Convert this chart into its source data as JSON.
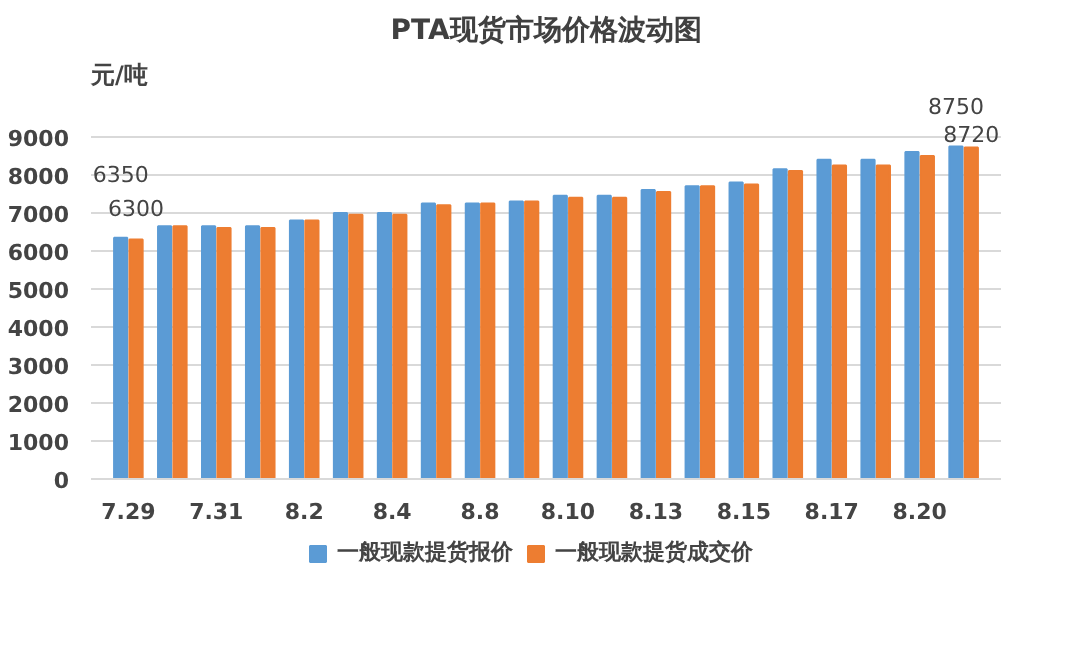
{
  "chart_data": {
    "type": "bar",
    "title": "PTA现货市场价格波动图",
    "ylabel": "元/吨",
    "categories": [
      "7.29",
      null,
      "7.31",
      null,
      "8.2",
      null,
      "8.4",
      null,
      "8.8",
      null,
      "8.10",
      null,
      "8.13",
      null,
      "8.15",
      null,
      "8.17",
      null,
      "8.20",
      null
    ],
    "series": [
      {
        "name": "一般现款提货报价",
        "color": "#5b9bd5",
        "values": [
          6350,
          6650,
          6650,
          6650,
          6800,
          7000,
          7000,
          7250,
          7250,
          7300,
          7450,
          7450,
          7600,
          7700,
          7800,
          8150,
          8400,
          8400,
          8600,
          8750
        ],
        "value_labels": [
          "6350",
          null,
          null,
          null,
          null,
          null,
          null,
          null,
          null,
          null,
          null,
          null,
          null,
          null,
          null,
          null,
          null,
          null,
          null,
          "8750"
        ]
      },
      {
        "name": "一般现款提货成交价",
        "color": "#ed7d31",
        "values": [
          6300,
          6650,
          6600,
          6600,
          6800,
          6950,
          6950,
          7200,
          7250,
          7300,
          7400,
          7400,
          7550,
          7700,
          7750,
          8100,
          8250,
          8250,
          8500,
          8720
        ],
        "value_labels": [
          "6300",
          null,
          null,
          null,
          null,
          null,
          null,
          null,
          null,
          null,
          null,
          null,
          null,
          null,
          null,
          null,
          null,
          null,
          null,
          "8720"
        ]
      }
    ],
    "ylim": [
      0,
      9000
    ],
    "yticks": [
      0,
      1000,
      2000,
      3000,
      4000,
      5000,
      6000,
      7000,
      8000,
      9000
    ],
    "grid": "y",
    "legend": "bottom"
  }
}
